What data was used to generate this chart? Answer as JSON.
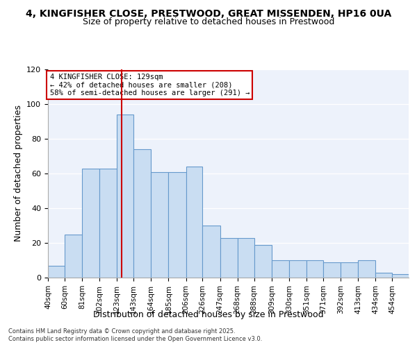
{
  "title1": "4, KINGFISHER CLOSE, PRESTWOOD, GREAT MISSENDEN, HP16 0UA",
  "title2": "Size of property relative to detached houses in Prestwood",
  "xlabel": "Distribution of detached houses by size in Prestwood",
  "ylabel": "Number of detached properties",
  "bar_edges": [
    40,
    60,
    81,
    102,
    123,
    143,
    164,
    185,
    206,
    226,
    247,
    268,
    288,
    309,
    330,
    351,
    371,
    392,
    413,
    434,
    454
  ],
  "bar_heights": [
    7,
    25,
    63,
    63,
    94,
    74,
    61,
    61,
    64,
    30,
    23,
    23,
    19,
    10,
    10,
    10,
    9,
    9,
    10,
    3,
    2
  ],
  "bar_color": "#c9ddf2",
  "bar_edge_color": "#6699cc",
  "property_size": 129,
  "vline_color": "#cc0000",
  "annotation_line1": "4 KINGFISHER CLOSE: 129sqm",
  "annotation_line2": "← 42% of detached houses are smaller (208)",
  "annotation_line3": "58% of semi-detached houses are larger (291) →",
  "annotation_box_color": "#cc0000",
  "ylim": [
    0,
    120
  ],
  "yticks": [
    0,
    20,
    40,
    60,
    80,
    100,
    120
  ],
  "background_color": "#edf2fb",
  "footer_line1": "Contains HM Land Registry data © Crown copyright and database right 2025.",
  "footer_line2": "Contains public sector information licensed under the Open Government Licence v3.0.",
  "tick_label_fontsize": 7.5,
  "axis_label_fontsize": 9,
  "title_fontsize1": 10,
  "title_fontsize2": 9
}
